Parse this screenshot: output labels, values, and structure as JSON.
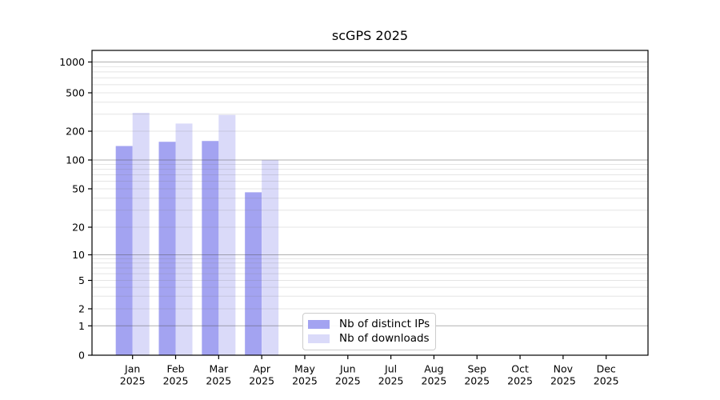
{
  "chart_data": {
    "type": "bar",
    "title": "scGPS 2025",
    "categories": [
      "Jan",
      "Feb",
      "Mar",
      "Apr",
      "May",
      "Jun",
      "Jul",
      "Aug",
      "Sep",
      "Oct",
      "Nov",
      "Dec"
    ],
    "x_tick_year": "2025",
    "y_scale": "symlog",
    "y_ticks": [
      0,
      1,
      2,
      5,
      10,
      20,
      50,
      100,
      200,
      500,
      1000
    ],
    "ylim": [
      0,
      1300
    ],
    "grid": "both",
    "legend_position": "lower-center",
    "series": [
      {
        "name": "Nb of distinct IPs",
        "color": "#a3a3f1",
        "values": [
          140,
          155,
          158,
          46,
          null,
          null,
          null,
          null,
          null,
          null,
          null,
          null
        ]
      },
      {
        "name": "Nb of downloads",
        "color": "#dadaf9",
        "values": [
          310,
          240,
          295,
          100,
          null,
          null,
          null,
          null,
          null,
          null,
          null,
          null
        ]
      }
    ],
    "colors": {
      "grid_minor": "#e8e8e8",
      "grid_major": "#b0b0b0",
      "axis": "#000000",
      "text": "#000000"
    }
  }
}
